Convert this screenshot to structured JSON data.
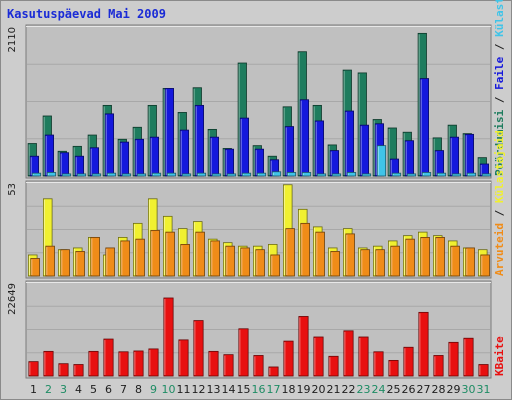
{
  "title": "Kasutuspäevad Mai 2009",
  "chart_data": {
    "type": "bar",
    "categories": [
      "1",
      "2",
      "3",
      "4",
      "5",
      "6",
      "7",
      "8",
      "9",
      "10",
      "11",
      "12",
      "13",
      "14",
      "15",
      "16",
      "17",
      "18",
      "19",
      "20",
      "21",
      "22",
      "23",
      "24",
      "25",
      "26",
      "27",
      "28",
      "29",
      "30",
      "31"
    ],
    "weekend_days": [
      "2",
      "3",
      "9",
      "10",
      "16",
      "17",
      "23",
      "24",
      "30",
      "31"
    ],
    "colors": {
      "weekday_label": "#202020",
      "weekend_label": "#1e8c64",
      "background": "#cdcdcd",
      "plot_background": "#c0c0c0",
      "title": "#1a2bd6"
    },
    "panels": [
      {
        "id": "top",
        "max_label": "2110",
        "max": 2110,
        "series": [
          {
            "name": "Pöördumisi",
            "color": "#1e7c5e",
            "values": [
              460,
              850,
              350,
              420,
              580,
              1000,
              520,
              690,
              1000,
              1240,
              900,
              1250,
              660,
              390,
              1600,
              430,
              280,
              980,
              1760,
              1000,
              440,
              1500,
              1460,
              800,
              680,
              620,
              2020,
              540,
              720,
              600,
              260
            ]
          },
          {
            "name": "Faile",
            "color": "#1518dc",
            "values": [
              280,
              580,
              330,
              280,
              400,
              880,
              480,
              520,
              550,
              1240,
              650,
              1000,
              550,
              380,
              820,
              380,
              230,
              700,
              1080,
              780,
              360,
              920,
              720,
              740,
              240,
              500,
              1380,
              360,
              550,
              590,
              170
            ]
          },
          {
            "name": "Külastusi",
            "color": "#40c4e8",
            "values": [
              40,
              50,
              30,
              30,
              30,
              40,
              30,
              30,
              40,
              40,
              30,
              40,
              30,
              30,
              40,
              40,
              60,
              50,
              50,
              30,
              30,
              50,
              30,
              430,
              40,
              30,
              50,
              40,
              30,
              40,
              30
            ]
          }
        ]
      },
      {
        "id": "middle",
        "max_label": "53",
        "max": 53,
        "series": [
          {
            "name": "Külastajaid",
            "color": "#f0f030",
            "values": [
              12,
              44,
              15,
              16,
              22,
              12,
              22,
              30,
              44,
              34,
              27,
              31,
              21,
              19,
              17,
              17,
              18,
              52,
              38,
              28,
              16,
              27,
              16,
              17,
              20,
              23,
              25,
              23,
              20,
              16,
              15
            ]
          },
          {
            "name": "Arvuteid",
            "color": "#f08c18",
            "values": [
              10,
              17,
              15,
              14,
              22,
              16,
              20,
              21,
              26,
              25,
              18,
              25,
              20,
              17,
              16,
              15,
              12,
              27,
              30,
              25,
              14,
              24,
              15,
              15,
              17,
              21,
              22,
              22,
              17,
              16,
              12
            ]
          }
        ]
      },
      {
        "id": "bottom",
        "max_label": "22649",
        "max": 22649,
        "series": [
          {
            "name": "KBaite",
            "color": "#e81010",
            "values": [
              3500,
              6000,
              3000,
              2800,
              6000,
              9000,
              5900,
              6100,
              6600,
              19000,
              8800,
              13500,
              6000,
              5200,
              11500,
              5000,
              2200,
              8500,
              14500,
              9500,
              4800,
              11000,
              9500,
              5900,
              3800,
              7000,
              15500,
              5000,
              8200,
              9200,
              2800
            ]
          }
        ]
      }
    ],
    "side_labels": {
      "top": [
        "Pöördumisi",
        "/",
        "Faile",
        "/",
        "Külastusi"
      ],
      "middle": [
        "Arvuteid",
        "/",
        "Külastajaid"
      ],
      "bottom": [
        "KBaite"
      ]
    }
  }
}
